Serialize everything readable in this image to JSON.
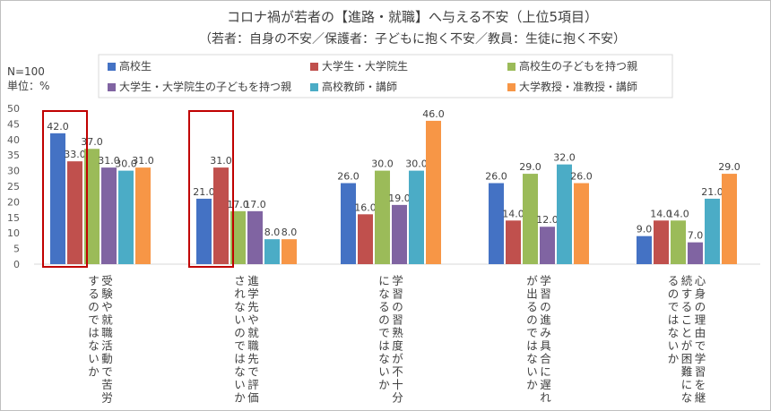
{
  "chart_data": {
    "type": "bar",
    "title": "コロナ禍が若者の【進路・就職】へ与える不安（上位5項目）",
    "subtitle": "（若者：自身の不安／保護者：子どもに抱く不安／教員：生徒に抱く不安）",
    "sample_size": "N=100",
    "unit": "単位：%",
    "ylim": [
      0,
      50
    ],
    "yticks": [
      0,
      5,
      10,
      15,
      20,
      25,
      30,
      35,
      40,
      45,
      50
    ],
    "legend_position": "top",
    "grid": false,
    "categories": [
      "受験や就職活動で苦労するのではないか",
      "進学先や就職先で評価されないのではないか",
      "学習の習熟度が不十分になるのではないか",
      "学習の進み具合に遅れが出るのではないか",
      "心身の理由で学習を継続することが困難になるのではないか"
    ],
    "series": [
      {
        "name": "高校生",
        "color": "#4472C4",
        "values": [
          42.0,
          21.0,
          26.0,
          26.0,
          9.0
        ]
      },
      {
        "name": "大学生・大学院生",
        "color": "#C0504D",
        "values": [
          33.0,
          31.0,
          16.0,
          14.0,
          14.0
        ]
      },
      {
        "name": "高校生の子どもを持つ親",
        "color": "#9BBB59",
        "values": [
          37.0,
          17.0,
          30.0,
          29.0,
          14.0
        ]
      },
      {
        "name": "大学生・大学院生の子どもを持つ親",
        "color": "#8064A2",
        "values": [
          31.0,
          17.0,
          19.0,
          12.0,
          7.0
        ]
      },
      {
        "name": "高校教師・講師",
        "color": "#4BACC6",
        "values": [
          30.0,
          8.0,
          30.0,
          32.0,
          21.0
        ]
      },
      {
        "name": "大学教授・准教授・講師",
        "color": "#F79646",
        "values": [
          31.0,
          8.0,
          46.0,
          26.0,
          29.0
        ]
      }
    ],
    "highlighted_categories": [
      0,
      1
    ],
    "highlight_color": "#C00000"
  }
}
